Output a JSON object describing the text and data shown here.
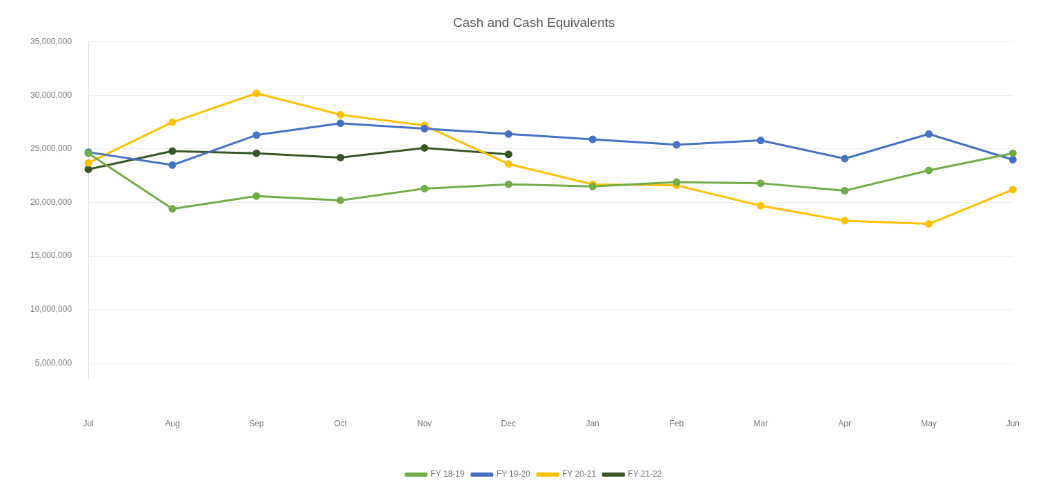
{
  "chart_data": {
    "type": "line",
    "title": "Cash and Cash Equivalents",
    "categories": [
      "Jul",
      "Aug",
      "Sep",
      "Oct",
      "Nov",
      "Dec",
      "Jan",
      "Feb",
      "Mar",
      "Apr",
      "May",
      "Jun"
    ],
    "series": [
      {
        "name": "FY 18-19",
        "color": "#70ad47",
        "values": [
          24600000,
          19400000,
          20600000,
          20200000,
          21300000,
          21700000,
          21500000,
          21900000,
          21800000,
          21100000,
          23000000,
          24600000
        ]
      },
      {
        "name": "FY 19-20",
        "color": "#4472c4",
        "values": [
          24700000,
          23500000,
          26300000,
          27400000,
          26900000,
          26400000,
          25900000,
          25400000,
          25800000,
          24100000,
          26400000,
          24000000
        ]
      },
      {
        "name": "FY 20-21",
        "color": "#ffc000",
        "values": [
          23700000,
          27500000,
          30200000,
          28200000,
          27200000,
          23600000,
          21700000,
          21600000,
          19700000,
          18300000,
          18000000,
          21200000
        ]
      },
      {
        "name": "FY 21-22",
        "color": "#375623",
        "values": [
          23100000,
          24800000,
          24600000,
          24200000,
          25100000,
          24500000,
          null,
          null,
          null,
          null,
          null,
          null
        ]
      }
    ],
    "ylim": [
      3500000,
      35000000
    ],
    "yticks": [
      {
        "value": 5000000,
        "label": "5,000,000"
      },
      {
        "value": 10000000,
        "label": "10,000,000"
      },
      {
        "value": 15000000,
        "label": "15,000,000"
      },
      {
        "value": 20000000,
        "label": "20,000,000"
      },
      {
        "value": 25000000,
        "label": "25,000,000"
      },
      {
        "value": 30000000,
        "label": "30,000,000"
      },
      {
        "value": 35000000,
        "label": "35,000,000"
      }
    ],
    "grid": "y",
    "legend": "bottom",
    "marker": "circle",
    "line_style": "solid"
  }
}
